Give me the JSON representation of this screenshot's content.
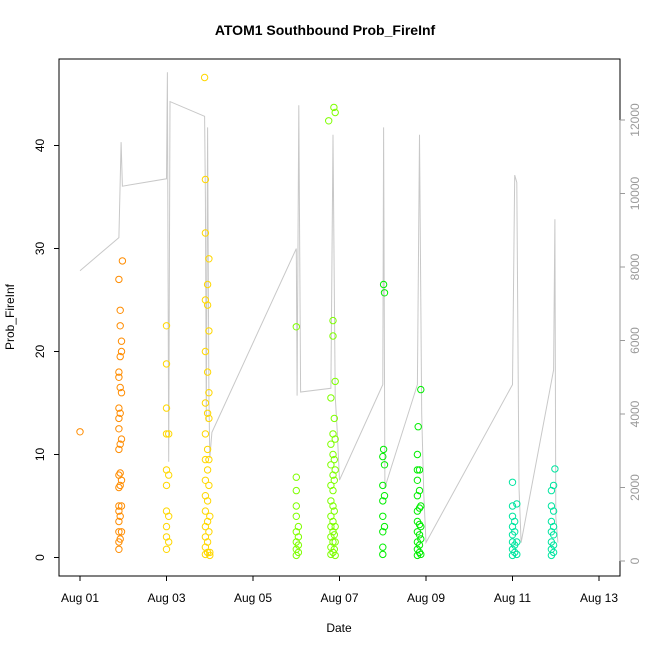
{
  "chart_data": {
    "type": "scatter",
    "title": "ATOM1 Southbound Prob_FireInf",
    "xlabel": "Date",
    "ylabel": "Prob_FireInf",
    "xlim": [
      0,
      12.2
    ],
    "ylim": [
      -1.5,
      48
    ],
    "x_ticks": [
      {
        "value": 0,
        "label": "Aug 01"
      },
      {
        "value": 2,
        "label": "Aug 03"
      },
      {
        "value": 4,
        "label": "Aug 05"
      },
      {
        "value": 6,
        "label": "Aug 07"
      },
      {
        "value": 8,
        "label": "Aug 09"
      },
      {
        "value": 10,
        "label": "Aug 11"
      },
      {
        "value": 12,
        "label": "Aug 13"
      }
    ],
    "y_ticks": [
      0,
      10,
      20,
      30,
      40
    ],
    "y2_ticks": [
      0,
      2000,
      4000,
      6000,
      8000,
      10000,
      12000
    ],
    "y2lim": [
      -250,
      13600
    ],
    "grid": false,
    "series": [
      {
        "color": "#ff8c00",
        "points": [
          [
            0.0,
            12.2
          ],
          [
            0.9,
            0.8
          ],
          [
            0.9,
            1.5
          ],
          [
            0.9,
            2.5
          ],
          [
            0.9,
            3.5
          ],
          [
            0.9,
            4.5
          ],
          [
            0.9,
            5
          ],
          [
            0.9,
            6.8
          ],
          [
            0.9,
            8
          ],
          [
            0.9,
            10.5
          ],
          [
            0.9,
            12.5
          ],
          [
            0.9,
            13.5
          ],
          [
            0.9,
            14.5
          ],
          [
            0.9,
            17.5
          ],
          [
            0.9,
            18
          ],
          [
            0.9,
            27
          ],
          [
            0.93,
            1.8
          ],
          [
            0.93,
            4
          ],
          [
            0.93,
            7
          ],
          [
            0.93,
            8.2
          ],
          [
            0.93,
            11
          ],
          [
            0.93,
            14
          ],
          [
            0.93,
            16.5
          ],
          [
            0.93,
            19.5
          ],
          [
            0.93,
            22.5
          ],
          [
            0.93,
            24
          ],
          [
            0.96,
            2.5
          ],
          [
            0.96,
            5
          ],
          [
            0.96,
            7.5
          ],
          [
            0.96,
            11.5
          ],
          [
            0.96,
            16
          ],
          [
            0.96,
            20
          ],
          [
            0.96,
            21
          ],
          [
            0.98,
            28.8
          ]
        ]
      },
      {
        "color": "#ffd700",
        "points": [
          [
            2.0,
            0.8
          ],
          [
            2.0,
            2
          ],
          [
            2.0,
            3
          ],
          [
            2.0,
            4.5
          ],
          [
            2.0,
            7
          ],
          [
            2.0,
            8.5
          ],
          [
            2.0,
            12
          ],
          [
            2.0,
            14.5
          ],
          [
            2.0,
            18.8
          ],
          [
            2.0,
            22.5
          ],
          [
            2.05,
            1.5
          ],
          [
            2.05,
            4
          ],
          [
            2.05,
            8
          ],
          [
            2.05,
            12
          ],
          [
            2.9,
            0.3
          ],
          [
            2.9,
            1
          ],
          [
            2.9,
            2
          ],
          [
            2.9,
            3
          ],
          [
            2.9,
            4.5
          ],
          [
            2.9,
            6
          ],
          [
            2.9,
            7.5
          ],
          [
            2.9,
            9.5
          ],
          [
            2.9,
            12
          ],
          [
            2.9,
            15
          ],
          [
            2.9,
            20
          ],
          [
            2.9,
            25
          ],
          [
            2.9,
            31.5
          ],
          [
            2.9,
            36.7
          ],
          [
            2.95,
            0.5
          ],
          [
            2.95,
            1.5
          ],
          [
            2.95,
            3.5
          ],
          [
            2.95,
            5.5
          ],
          [
            2.95,
            8.5
          ],
          [
            2.95,
            10.5
          ],
          [
            2.95,
            14
          ],
          [
            2.95,
            18
          ],
          [
            2.95,
            24.5
          ],
          [
            2.95,
            26.5
          ],
          [
            2.98,
            2.5
          ],
          [
            2.98,
            7
          ],
          [
            2.98,
            9.5
          ],
          [
            2.98,
            13.5
          ],
          [
            2.98,
            16
          ],
          [
            2.98,
            22
          ],
          [
            2.98,
            29
          ],
          [
            3.0,
            0.5
          ],
          [
            3.0,
            4
          ],
          [
            3.0,
            0.2
          ],
          [
            2.88,
            46.6
          ]
        ]
      },
      {
        "color": "#7fff00",
        "points": [
          [
            5.0,
            0.2
          ],
          [
            5.0,
            0.8
          ],
          [
            5.0,
            1.5
          ],
          [
            5.0,
            2.5
          ],
          [
            5.0,
            4
          ],
          [
            5.0,
            5
          ],
          [
            5.0,
            6.5
          ],
          [
            5.0,
            7.8
          ],
          [
            5.0,
            22.4
          ],
          [
            5.05,
            0.5
          ],
          [
            5.05,
            1.2
          ],
          [
            5.05,
            2
          ],
          [
            5.05,
            3
          ],
          [
            5.8,
            0.3
          ],
          [
            5.8,
            1
          ],
          [
            5.8,
            2
          ],
          [
            5.8,
            3
          ],
          [
            5.8,
            4
          ],
          [
            5.8,
            5.5
          ],
          [
            5.8,
            7
          ],
          [
            5.8,
            9
          ],
          [
            5.8,
            11
          ],
          [
            5.8,
            15.5
          ],
          [
            5.85,
            0.5
          ],
          [
            5.85,
            1.5
          ],
          [
            5.85,
            2.5
          ],
          [
            5.85,
            3.5
          ],
          [
            5.85,
            5
          ],
          [
            5.85,
            6.5
          ],
          [
            5.85,
            8
          ],
          [
            5.85,
            10
          ],
          [
            5.85,
            12
          ],
          [
            5.85,
            21.5
          ],
          [
            5.85,
            23
          ],
          [
            5.88,
            0.8
          ],
          [
            5.88,
            2.2
          ],
          [
            5.88,
            4.5
          ],
          [
            5.88,
            7.5
          ],
          [
            5.88,
            9.5
          ],
          [
            5.88,
            13.5
          ],
          [
            5.9,
            0.2
          ],
          [
            5.9,
            1.5
          ],
          [
            5.9,
            3
          ],
          [
            5.9,
            8.5
          ],
          [
            5.9,
            11.5
          ],
          [
            5.9,
            17.1
          ],
          [
            5.75,
            42.4
          ],
          [
            5.87,
            43.7
          ],
          [
            5.9,
            43.2
          ]
        ]
      },
      {
        "color": "#00ee00",
        "points": [
          [
            7.0,
            0.3
          ],
          [
            7.0,
            1
          ],
          [
            7.0,
            2.5
          ],
          [
            7.0,
            4
          ],
          [
            7.0,
            5.5
          ],
          [
            7.0,
            7
          ],
          [
            7.0,
            9.8
          ],
          [
            7.02,
            10.5
          ],
          [
            7.02,
            26.5
          ],
          [
            7.04,
            25.7
          ],
          [
            7.04,
            3
          ],
          [
            7.04,
            6
          ],
          [
            7.04,
            9
          ],
          [
            7.8,
            0.2
          ],
          [
            7.8,
            0.8
          ],
          [
            7.8,
            1.5
          ],
          [
            7.8,
            2.5
          ],
          [
            7.8,
            3.5
          ],
          [
            7.8,
            4.5
          ],
          [
            7.8,
            6
          ],
          [
            7.8,
            7.5
          ],
          [
            7.8,
            8.5
          ],
          [
            7.8,
            10
          ],
          [
            7.82,
            12.7
          ],
          [
            7.85,
            0.5
          ],
          [
            7.85,
            1.2
          ],
          [
            7.85,
            2.2
          ],
          [
            7.85,
            3.2
          ],
          [
            7.85,
            4.8
          ],
          [
            7.85,
            6.5
          ],
          [
            7.85,
            8.5
          ],
          [
            7.88,
            16.3
          ],
          [
            7.88,
            0.3
          ],
          [
            7.88,
            1.8
          ],
          [
            7.88,
            3
          ],
          [
            7.88,
            5
          ]
        ]
      },
      {
        "color": "#00e5a0",
        "points": [
          [
            10.0,
            0.2
          ],
          [
            10.0,
            0.8
          ],
          [
            10.0,
            1.5
          ],
          [
            10.0,
            2.2
          ],
          [
            10.0,
            3
          ],
          [
            10.0,
            4
          ],
          [
            10.0,
            5
          ],
          [
            10.0,
            7.3
          ],
          [
            10.05,
            0.5
          ],
          [
            10.05,
            1.2
          ],
          [
            10.05,
            2.5
          ],
          [
            10.05,
            3.5
          ],
          [
            10.1,
            0.3
          ],
          [
            10.1,
            1.5
          ],
          [
            10.1,
            5.2
          ],
          [
            10.9,
            0.2
          ],
          [
            10.9,
            0.8
          ],
          [
            10.9,
            1.5
          ],
          [
            10.9,
            2.5
          ],
          [
            10.9,
            3.5
          ],
          [
            10.9,
            5
          ],
          [
            10.9,
            6.5
          ],
          [
            10.95,
            0.5
          ],
          [
            10.95,
            1.2
          ],
          [
            10.95,
            2.2
          ],
          [
            10.95,
            3
          ],
          [
            10.95,
            4.5
          ],
          [
            10.95,
            7
          ],
          [
            10.98,
            8.6
          ]
        ]
      }
    ],
    "y2_line": {
      "color": "#c8c8c8",
      "points": [
        [
          0.0,
          7900
        ],
        [
          0.9,
          8800
        ],
        [
          0.95,
          11400
        ],
        [
          0.98,
          10200
        ],
        [
          2.0,
          10400
        ],
        [
          2.02,
          13300
        ],
        [
          2.05,
          2700
        ],
        [
          2.08,
          12500
        ],
        [
          2.88,
          12100
        ],
        [
          2.9,
          9900
        ],
        [
          2.92,
          3800
        ],
        [
          2.95,
          11800
        ],
        [
          2.98,
          4500
        ],
        [
          3.0,
          2800
        ],
        [
          3.05,
          3500
        ],
        [
          5.0,
          8500
        ],
        [
          5.02,
          4500
        ],
        [
          5.06,
          12400
        ],
        [
          5.1,
          4600
        ],
        [
          5.8,
          4700
        ],
        [
          5.85,
          11600
        ],
        [
          5.9,
          4500
        ],
        [
          5.95,
          3500
        ],
        [
          6.0,
          2200
        ],
        [
          7.0,
          4800
        ],
        [
          7.02,
          11800
        ],
        [
          7.05,
          2000
        ],
        [
          7.8,
          4800
        ],
        [
          7.85,
          11600
        ],
        [
          7.9,
          4000
        ],
        [
          7.95,
          1800
        ],
        [
          8.0,
          500
        ],
        [
          10.0,
          4800
        ],
        [
          10.05,
          10500
        ],
        [
          10.1,
          10300
        ],
        [
          10.15,
          2000
        ],
        [
          10.2,
          500
        ],
        [
          10.95,
          5200
        ],
        [
          10.98,
          9300
        ],
        [
          11.0,
          1200
        ],
        [
          11.05,
          500
        ]
      ]
    }
  }
}
